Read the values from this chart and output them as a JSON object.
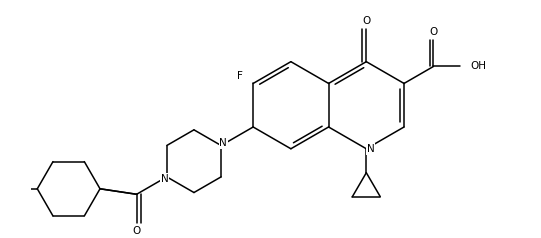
{
  "figsize": [
    5.41,
    2.38
  ],
  "dpi": 100,
  "bg_color": "#ffffff",
  "lw": 1.1,
  "fs": 7.5,
  "xlim": [
    -0.5,
    10.5
  ],
  "ylim": [
    -1.2,
    4.2
  ]
}
